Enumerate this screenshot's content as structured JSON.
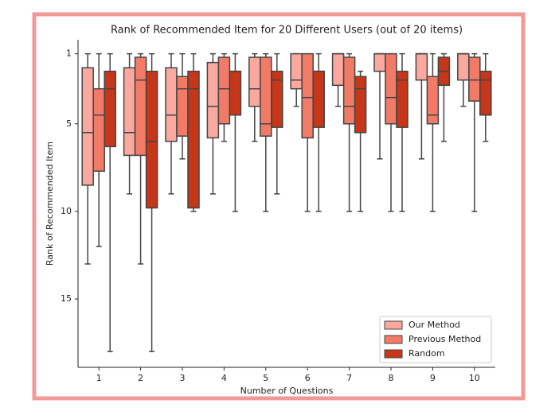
{
  "chart_data": {
    "type": "box",
    "title": "Rank of Recommended Item for 20 Different Users (out of 20 items)",
    "xlabel": "Number of Questions",
    "ylabel": "Rank of Recommended Item",
    "categories": [
      "1",
      "2",
      "3",
      "4",
      "5",
      "6",
      "7",
      "8",
      "9",
      "10"
    ],
    "ylim": [
      18.9,
      0.2
    ],
    "yticks": [
      1,
      5,
      10,
      15
    ],
    "legend": "lower right",
    "series": [
      {
        "name": "Our Method",
        "color": "#fba99f",
        "min": [
          1,
          1,
          1,
          1,
          1,
          1,
          1,
          1,
          1,
          1
        ],
        "q1": [
          1.8,
          1.8,
          1.8,
          1.5,
          1.2,
          1,
          1,
          1,
          1,
          1
        ],
        "median": [
          5.5,
          5.5,
          4.5,
          4,
          3,
          2.5,
          1,
          1,
          1,
          1
        ],
        "q3": [
          8.5,
          6.8,
          6,
          5.8,
          4,
          3,
          2.8,
          2,
          2.5,
          2.5
        ],
        "max": [
          13,
          9,
          9,
          9,
          6,
          4,
          4,
          7,
          7,
          4
        ]
      },
      {
        "name": "Previous Method",
        "color": "#f27b67",
        "min": [
          1,
          1,
          1,
          1,
          1,
          1,
          1,
          1,
          1,
          1
        ],
        "q1": [
          3,
          1.2,
          2.3,
          1.2,
          1.2,
          1,
          1.2,
          1,
          2.3,
          1.2
        ],
        "median": [
          4.5,
          2.5,
          3,
          3,
          5,
          3.5,
          4,
          3.5,
          4.5,
          2.5
        ],
        "q3": [
          7.7,
          6.8,
          5.7,
          5,
          5.7,
          5.8,
          5,
          5,
          5,
          3.7
        ],
        "max": [
          12,
          13,
          7,
          6,
          10,
          10,
          10,
          10,
          10,
          10
        ]
      },
      {
        "name": "Random",
        "color": "#c63619",
        "min": [
          1,
          1,
          1,
          1,
          1,
          1,
          2,
          1,
          1,
          1
        ],
        "q1": [
          2,
          2,
          2,
          2,
          2,
          2,
          2.3,
          2,
          1.2,
          2
        ],
        "median": [
          3,
          6,
          3,
          2,
          2.5,
          2,
          3,
          2.5,
          2,
          2.5
        ],
        "q3": [
          6.3,
          9.8,
          9.8,
          4.5,
          5.2,
          5.2,
          5.5,
          5.2,
          2.8,
          4.5
        ],
        "max": [
          18,
          18,
          10,
          10,
          9,
          10,
          10,
          10,
          6,
          6
        ]
      }
    ]
  }
}
